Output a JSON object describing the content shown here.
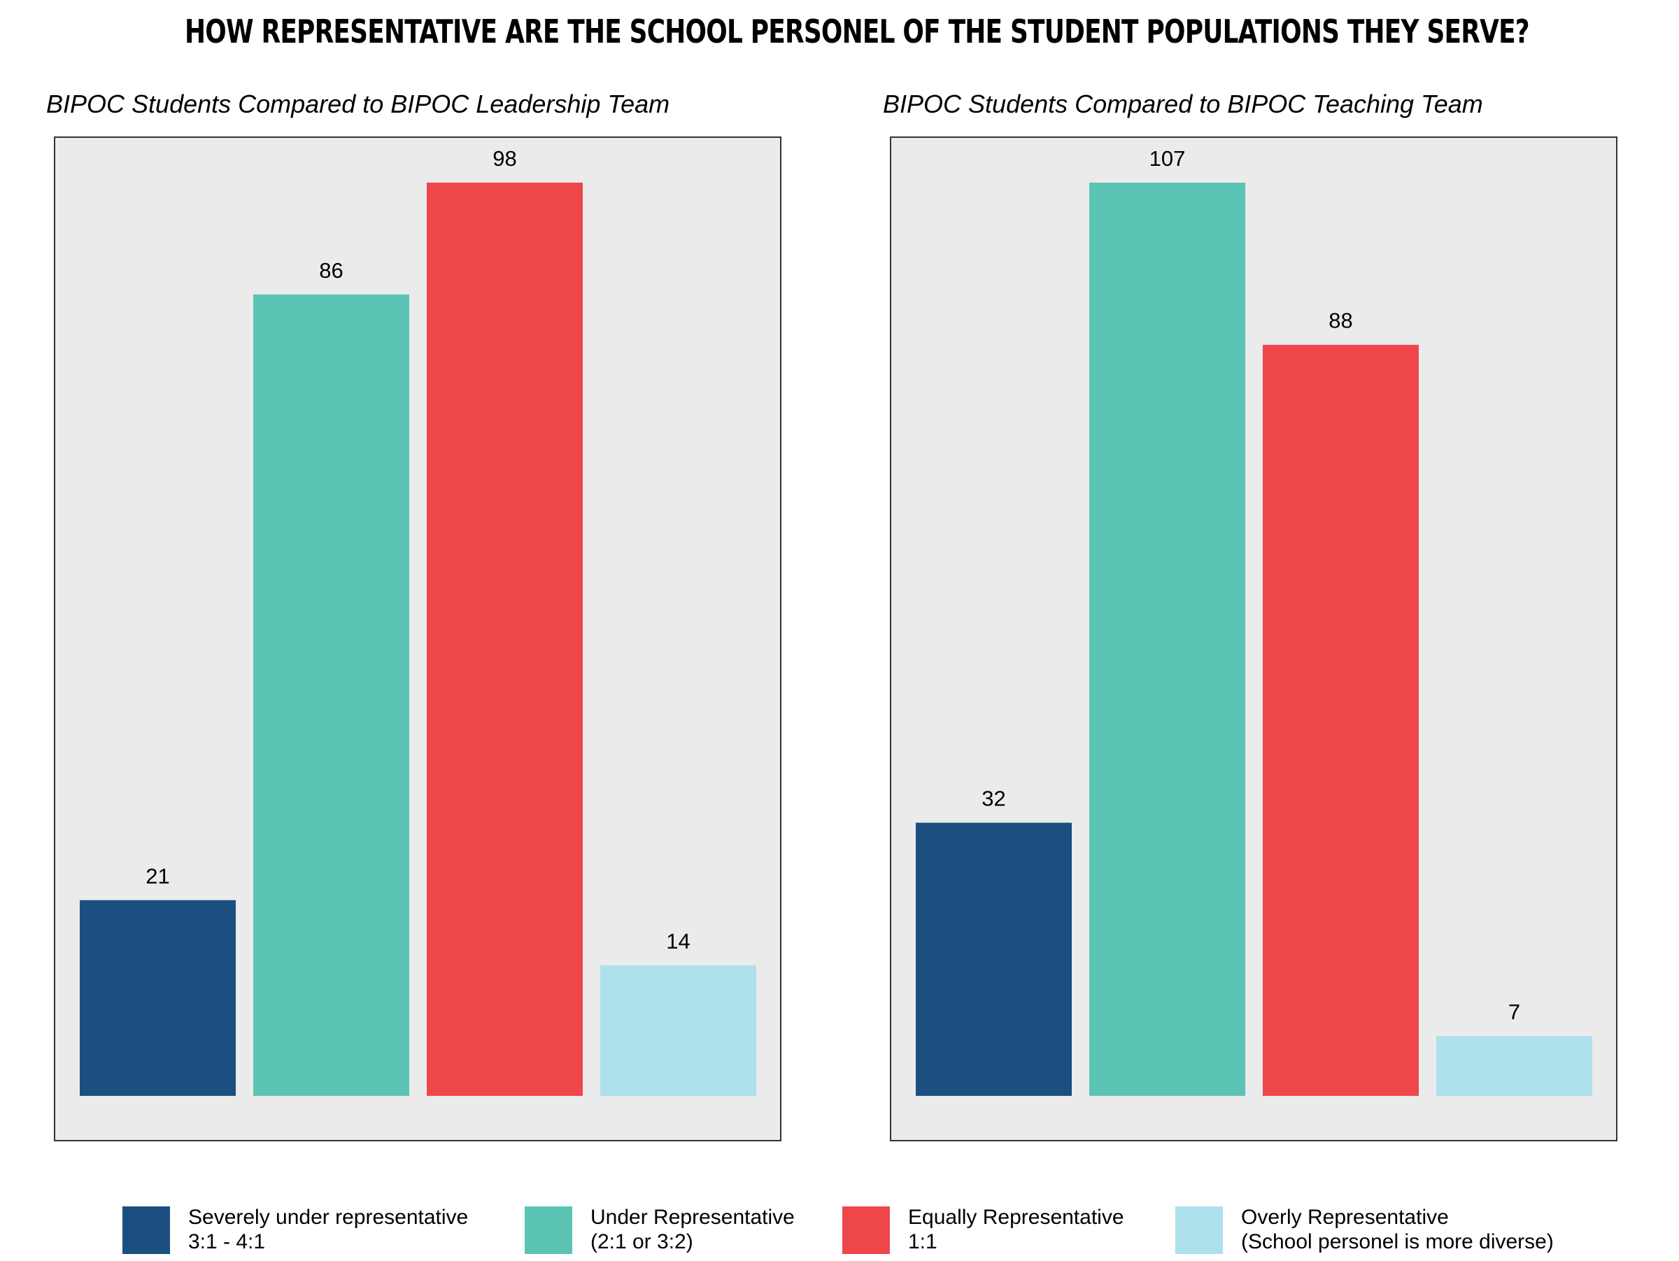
{
  "title": "HOW REPRESENTATIVE ARE THE SCHOOL PERSONEL OF THE STUDENT POPULATIONS THEY SERVE?",
  "colors": {
    "severely_under": "#1b4f80",
    "under": "#5bc4b4",
    "equal": "#ef464c",
    "overly": "#aee0ec",
    "panel_bg": "#ebebeb",
    "panel_border": "#333333"
  },
  "legend": [
    {
      "line1": "Severely under representative",
      "line2": "3:1 - 4:1",
      "color": "#1b4f80"
    },
    {
      "line1": "Under Representative",
      "line2": "(2:1 or 3:2)",
      "color": "#5bc4b4"
    },
    {
      "line1": "Equally Representative",
      "line2": "1:1",
      "color": "#ef464c"
    },
    {
      "line1": "Overly Representative",
      "line2": "(School personel is more diverse)",
      "color": "#aee0ec"
    }
  ],
  "chart_data": [
    {
      "type": "bar",
      "title": "BIPOC Students Compared to BIPOC Leadership Team",
      "categories": [
        "Severely under representative 3:1 - 4:1",
        "Under Representative (2:1 or 3:2)",
        "Equally Representative 1:1",
        "Overly Representative (School personel is more diverse)"
      ],
      "values": [
        21,
        86,
        98,
        14
      ],
      "colors": [
        "#1b4f80",
        "#5bc4b4",
        "#ef464c",
        "#aee0ec"
      ],
      "ylim": [
        0,
        98
      ],
      "grid": false,
      "legend_position": "bottom"
    },
    {
      "type": "bar",
      "title": "BIPOC Students Compared to BIPOC Teaching Team",
      "categories": [
        "Severely under representative 3:1 - 4:1",
        "Under Representative (2:1 or 3:2)",
        "Equally Representative 1:1",
        "Overly Representative (School personel is more diverse)"
      ],
      "values": [
        32,
        107,
        88,
        7
      ],
      "colors": [
        "#1b4f80",
        "#5bc4b4",
        "#ef464c",
        "#aee0ec"
      ],
      "ylim": [
        0,
        107
      ],
      "grid": false,
      "legend_position": "bottom"
    }
  ]
}
